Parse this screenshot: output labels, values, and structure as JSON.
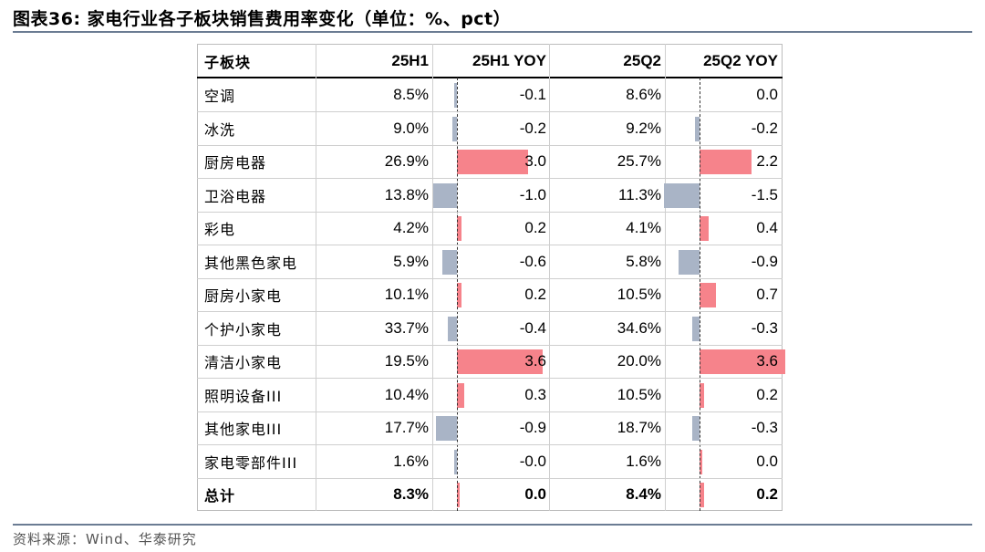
{
  "title": "图表36:  家电行业各子板块销售费用率变化（单位：%、pct）",
  "source": "资料来源：Wind、华泰研究",
  "colors": {
    "positive": "#f6838b",
    "negative": "#a9b4c6",
    "rule": "#6b7c93"
  },
  "table": {
    "headers": [
      "子板块",
      "25H1",
      "25H1 YOY",
      "25Q2",
      "25Q2 YOY"
    ],
    "rows": [
      {
        "name": "空调",
        "h1": "8.5%",
        "h1_yoy": "-0.1",
        "q2": "8.6%",
        "q2_yoy": "0.0",
        "h1_yoy_val": -0.1,
        "q2_yoy_val": 0.0
      },
      {
        "name": "冰洗",
        "h1": "9.0%",
        "h1_yoy": "-0.2",
        "q2": "9.2%",
        "q2_yoy": "-0.2",
        "h1_yoy_val": -0.2,
        "q2_yoy_val": -0.2
      },
      {
        "name": "厨房电器",
        "h1": "26.9%",
        "h1_yoy": "3.0",
        "q2": "25.7%",
        "q2_yoy": "2.2",
        "h1_yoy_val": 3.0,
        "q2_yoy_val": 2.2
      },
      {
        "name": "卫浴电器",
        "h1": "13.8%",
        "h1_yoy": "-1.0",
        "q2": "11.3%",
        "q2_yoy": "-1.5",
        "h1_yoy_val": -1.0,
        "q2_yoy_val": -1.5
      },
      {
        "name": "彩电",
        "h1": "4.2%",
        "h1_yoy": "0.2",
        "q2": "4.1%",
        "q2_yoy": "0.4",
        "h1_yoy_val": 0.2,
        "q2_yoy_val": 0.4
      },
      {
        "name": "其他黑色家电",
        "h1": "5.9%",
        "h1_yoy": "-0.6",
        "q2": "5.8%",
        "q2_yoy": "-0.9",
        "h1_yoy_val": -0.6,
        "q2_yoy_val": -0.9
      },
      {
        "name": "厨房小家电",
        "h1": "10.1%",
        "h1_yoy": "0.2",
        "q2": "10.5%",
        "q2_yoy": "0.7",
        "h1_yoy_val": 0.2,
        "q2_yoy_val": 0.7
      },
      {
        "name": "个护小家电",
        "h1": "33.7%",
        "h1_yoy": "-0.4",
        "q2": "34.6%",
        "q2_yoy": "-0.3",
        "h1_yoy_val": -0.4,
        "q2_yoy_val": -0.3
      },
      {
        "name": "清洁小家电",
        "h1": "19.5%",
        "h1_yoy": "3.6",
        "q2": "20.0%",
        "q2_yoy": "3.6",
        "h1_yoy_val": 3.6,
        "q2_yoy_val": 3.6
      },
      {
        "name": "照明设备III",
        "h1": "10.4%",
        "h1_yoy": "0.3",
        "q2": "10.5%",
        "q2_yoy": "0.2",
        "h1_yoy_val": 0.3,
        "q2_yoy_val": 0.2
      },
      {
        "name": "其他家电III",
        "h1": "17.7%",
        "h1_yoy": "-0.9",
        "q2": "18.7%",
        "q2_yoy": "-0.3",
        "h1_yoy_val": -0.9,
        "q2_yoy_val": -0.3
      },
      {
        "name": "家电零部件III",
        "h1": "1.6%",
        "h1_yoy": "-0.0",
        "q2": "1.6%",
        "q2_yoy": "0.0",
        "h1_yoy_val": -0.02,
        "q2_yoy_val": 0.02
      },
      {
        "name": "总计",
        "h1": "8.3%",
        "h1_yoy": "0.0",
        "q2": "8.4%",
        "q2_yoy": "0.2",
        "h1_yoy_val": 0.04,
        "q2_yoy_val": 0.2,
        "bold": true
      }
    ]
  }
}
